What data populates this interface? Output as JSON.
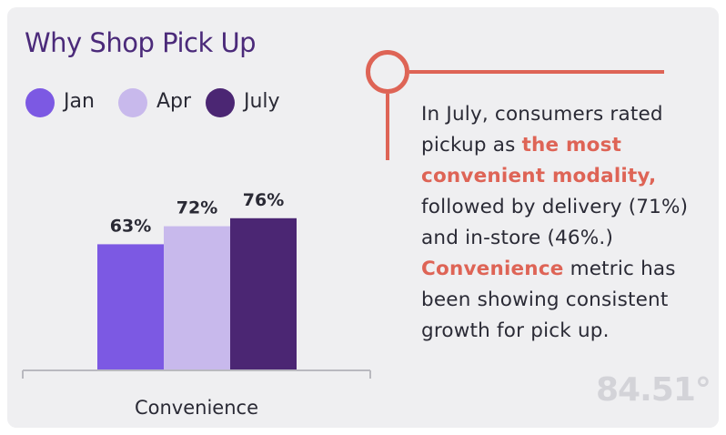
{
  "colors": {
    "card_bg": "#efeff1",
    "title": "#4b2a7a",
    "jan": "#7c59e3",
    "apr": "#c8b9ec",
    "july": "#4b2673",
    "accent": "#de6456",
    "text": "#2a2a35",
    "axis": "#b9b9bf",
    "logo": "#d3d3d8"
  },
  "title": "Why Shop Pick Up",
  "legend": [
    {
      "label": "Jan",
      "color": "#7c59e3"
    },
    {
      "label": "Apr",
      "color": "#c8b9ec"
    },
    {
      "label": "July",
      "color": "#4b2673"
    }
  ],
  "chart_data": {
    "type": "bar",
    "title": "Why Shop Pick Up",
    "categories": [
      "Convenience"
    ],
    "series": [
      {
        "name": "Jan",
        "values": [
          63
        ],
        "label": "63%",
        "color": "#7c59e3"
      },
      {
        "name": "Apr",
        "values": [
          72
        ],
        "label": "72%",
        "color": "#c8b9ec"
      },
      {
        "name": "July",
        "values": [
          76
        ],
        "label": "76%",
        "color": "#4b2673"
      }
    ],
    "xlabel": "Convenience",
    "ylabel": "",
    "ylim": [
      0,
      100
    ],
    "grid": false,
    "legend_position": "top-left"
  },
  "description": {
    "line1": "In July, consumers rated pickup as",
    "highlight1": "the most convenient modality,",
    "line2": "followed by delivery (71%) and in-store (46%.)",
    "highlight2": "Convenience",
    "line3": "metric has been showing consistent growth for pick up."
  },
  "logo": "84.51°"
}
